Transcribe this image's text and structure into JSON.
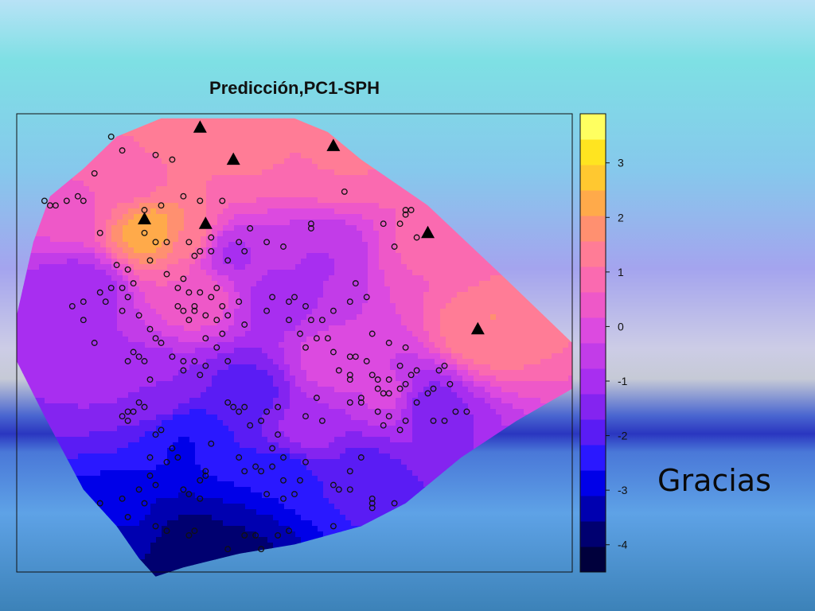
{
  "slide": {
    "closing_text": "Gracias"
  },
  "chart_data": {
    "type": "heatmap",
    "title": "Predicción,PC1-SPH",
    "xlabel": "",
    "ylabel": "",
    "grid": false,
    "legend": "right",
    "colorbar": {
      "ticks": [
        3,
        2,
        1,
        0,
        -1,
        -2,
        -3,
        -4
      ],
      "tick_labels": [
        "3",
        "2",
        "1",
        "0",
        "-1",
        "-2",
        "-3",
        "-4"
      ],
      "range": [
        -4.5,
        3.9
      ],
      "colors": [
        "#00003c",
        "#000070",
        "#0000b0",
        "#0000e8",
        "#2a18ff",
        "#5a1cf4",
        "#8424f0",
        "#a82ef0",
        "#c23ce8",
        "#dc4ae0",
        "#ee58c8",
        "#fa6ab0",
        "#ff7c96",
        "#ff9070",
        "#ffaa4a",
        "#ffc830",
        "#ffe420",
        "#ffff60"
      ]
    },
    "peaks": [
      {
        "x": 0.24,
        "y": 0.74,
        "v": 3.6
      },
      {
        "x": 0.31,
        "y": 0.73,
        "v": 2.2
      },
      {
        "x": 0.84,
        "y": 0.52,
        "v": 2.4
      },
      {
        "x": 0.3,
        "y": 0.95,
        "v": 1.6
      },
      {
        "x": 0.4,
        "y": 0.9,
        "v": 1.4
      },
      {
        "x": 0.58,
        "y": 0.88,
        "v": 1.3
      },
      {
        "x": 0.74,
        "y": 0.7,
        "v": 1.0
      },
      {
        "x": 0.32,
        "y": 0.6,
        "v": 1.2
      },
      {
        "x": 0.2,
        "y": 0.86,
        "v": 1.1
      },
      {
        "x": 0.68,
        "y": 0.38,
        "v": 0.6
      },
      {
        "x": 0.56,
        "y": 0.45,
        "v": 0.4
      },
      {
        "x": 0.1,
        "y": 0.8,
        "v": 0.8
      },
      {
        "x": 0.38,
        "y": 0.7,
        "v": -1.2
      },
      {
        "x": 0.55,
        "y": 0.7,
        "v": -1.0
      },
      {
        "x": 0.12,
        "y": 0.62,
        "v": -1.2
      },
      {
        "x": 0.73,
        "y": 0.37,
        "v": -1.8
      },
      {
        "x": 0.47,
        "y": 0.6,
        "v": -1.0
      },
      {
        "x": 0.42,
        "y": 0.4,
        "v": -2.0
      },
      {
        "x": 0.48,
        "y": 0.22,
        "v": -2.6
      },
      {
        "x": 0.3,
        "y": 0.3,
        "v": -2.8
      },
      {
        "x": 0.2,
        "y": 0.1,
        "v": -3.0
      },
      {
        "x": 0.3,
        "y": 0.05,
        "v": -4.2
      },
      {
        "x": 0.4,
        "y": 0.05,
        "v": -3.8
      },
      {
        "x": 0.62,
        "y": 0.22,
        "v": -1.8
      },
      {
        "x": 0.25,
        "y": 0.38,
        "v": -1.0
      },
      {
        "x": 0.05,
        "y": 0.55,
        "v": -0.8
      },
      {
        "x": 0.52,
        "y": 0.3,
        "v": -0.6
      },
      {
        "x": 0.18,
        "y": 0.45,
        "v": -0.5
      }
    ],
    "points": [
      [
        0.17,
        0.95
      ],
      [
        0.19,
        0.92
      ],
      [
        0.25,
        0.91
      ],
      [
        0.28,
        0.9
      ],
      [
        0.14,
        0.87
      ],
      [
        0.12,
        0.81
      ],
      [
        0.11,
        0.82
      ],
      [
        0.09,
        0.81
      ],
      [
        0.07,
        0.8
      ],
      [
        0.05,
        0.81
      ],
      [
        0.06,
        0.8
      ],
      [
        0.23,
        0.79
      ],
      [
        0.26,
        0.8
      ],
      [
        0.3,
        0.82
      ],
      [
        0.33,
        0.81
      ],
      [
        0.37,
        0.81
      ],
      [
        0.59,
        0.83
      ],
      [
        0.53,
        0.76
      ],
      [
        0.53,
        0.75
      ],
      [
        0.7,
        0.79
      ],
      [
        0.7,
        0.78
      ],
      [
        0.71,
        0.79
      ],
      [
        0.66,
        0.76
      ],
      [
        0.69,
        0.76
      ],
      [
        0.72,
        0.73
      ],
      [
        0.68,
        0.71
      ],
      [
        0.45,
        0.72
      ],
      [
        0.48,
        0.71
      ],
      [
        0.42,
        0.75
      ],
      [
        0.4,
        0.72
      ],
      [
        0.38,
        0.68
      ],
      [
        0.41,
        0.7
      ],
      [
        0.35,
        0.7
      ],
      [
        0.32,
        0.69
      ],
      [
        0.33,
        0.7
      ],
      [
        0.23,
        0.74
      ],
      [
        0.25,
        0.72
      ],
      [
        0.27,
        0.72
      ],
      [
        0.31,
        0.72
      ],
      [
        0.35,
        0.73
      ],
      [
        0.15,
        0.74
      ],
      [
        0.2,
        0.66
      ],
      [
        0.18,
        0.67
      ],
      [
        0.24,
        0.68
      ],
      [
        0.27,
        0.65
      ],
      [
        0.3,
        0.64
      ],
      [
        0.29,
        0.62
      ],
      [
        0.31,
        0.61
      ],
      [
        0.33,
        0.61
      ],
      [
        0.36,
        0.62
      ],
      [
        0.35,
        0.6
      ],
      [
        0.32,
        0.58
      ],
      [
        0.32,
        0.57
      ],
      [
        0.3,
        0.57
      ],
      [
        0.29,
        0.58
      ],
      [
        0.31,
        0.55
      ],
      [
        0.34,
        0.56
      ],
      [
        0.38,
        0.56
      ],
      [
        0.41,
        0.54
      ],
      [
        0.46,
        0.6
      ],
      [
        0.49,
        0.59
      ],
      [
        0.5,
        0.6
      ],
      [
        0.52,
        0.58
      ],
      [
        0.53,
        0.55
      ],
      [
        0.55,
        0.55
      ],
      [
        0.57,
        0.57
      ],
      [
        0.6,
        0.59
      ],
      [
        0.61,
        0.63
      ],
      [
        0.63,
        0.6
      ],
      [
        0.64,
        0.52
      ],
      [
        0.67,
        0.5
      ],
      [
        0.7,
        0.49
      ],
      [
        0.69,
        0.45
      ],
      [
        0.67,
        0.42
      ],
      [
        0.61,
        0.47
      ],
      [
        0.57,
        0.48
      ],
      [
        0.56,
        0.51
      ],
      [
        0.6,
        0.47
      ],
      [
        0.63,
        0.46
      ],
      [
        0.65,
        0.42
      ],
      [
        0.7,
        0.41
      ],
      [
        0.71,
        0.43
      ],
      [
        0.74,
        0.39
      ],
      [
        0.75,
        0.4
      ],
      [
        0.78,
        0.41
      ],
      [
        0.77,
        0.45
      ],
      [
        0.76,
        0.44
      ],
      [
        0.72,
        0.44
      ],
      [
        0.79,
        0.35
      ],
      [
        0.81,
        0.35
      ],
      [
        0.77,
        0.33
      ],
      [
        0.75,
        0.33
      ],
      [
        0.72,
        0.37
      ],
      [
        0.69,
        0.4
      ],
      [
        0.66,
        0.39
      ],
      [
        0.65,
        0.4
      ],
      [
        0.64,
        0.43
      ],
      [
        0.62,
        0.38
      ],
      [
        0.6,
        0.37
      ],
      [
        0.62,
        0.37
      ],
      [
        0.67,
        0.39
      ],
      [
        0.55,
        0.33
      ],
      [
        0.54,
        0.38
      ],
      [
        0.52,
        0.34
      ],
      [
        0.47,
        0.36
      ],
      [
        0.45,
        0.35
      ],
      [
        0.44,
        0.33
      ],
      [
        0.41,
        0.36
      ],
      [
        0.38,
        0.37
      ],
      [
        0.39,
        0.36
      ],
      [
        0.4,
        0.35
      ],
      [
        0.42,
        0.32
      ],
      [
        0.46,
        0.27
      ],
      [
        0.47,
        0.3
      ],
      [
        0.48,
        0.25
      ],
      [
        0.44,
        0.22
      ],
      [
        0.45,
        0.17
      ],
      [
        0.48,
        0.2
      ],
      [
        0.51,
        0.2
      ],
      [
        0.52,
        0.24
      ],
      [
        0.46,
        0.23
      ],
      [
        0.43,
        0.23
      ],
      [
        0.41,
        0.22
      ],
      [
        0.4,
        0.25
      ],
      [
        0.35,
        0.28
      ],
      [
        0.34,
        0.22
      ],
      [
        0.34,
        0.21
      ],
      [
        0.33,
        0.2
      ],
      [
        0.29,
        0.25
      ],
      [
        0.28,
        0.27
      ],
      [
        0.27,
        0.24
      ],
      [
        0.24,
        0.25
      ],
      [
        0.21,
        0.35
      ],
      [
        0.2,
        0.33
      ],
      [
        0.19,
        0.34
      ],
      [
        0.2,
        0.35
      ],
      [
        0.23,
        0.36
      ],
      [
        0.22,
        0.37
      ],
      [
        0.24,
        0.42
      ],
      [
        0.23,
        0.46
      ],
      [
        0.22,
        0.47
      ],
      [
        0.21,
        0.48
      ],
      [
        0.2,
        0.46
      ],
      [
        0.14,
        0.5
      ],
      [
        0.12,
        0.55
      ],
      [
        0.1,
        0.58
      ],
      [
        0.12,
        0.59
      ],
      [
        0.16,
        0.59
      ],
      [
        0.15,
        0.61
      ],
      [
        0.17,
        0.62
      ],
      [
        0.19,
        0.62
      ],
      [
        0.21,
        0.63
      ],
      [
        0.2,
        0.6
      ],
      [
        0.19,
        0.57
      ],
      [
        0.22,
        0.56
      ],
      [
        0.24,
        0.53
      ],
      [
        0.25,
        0.51
      ],
      [
        0.26,
        0.5
      ],
      [
        0.28,
        0.47
      ],
      [
        0.3,
        0.46
      ],
      [
        0.32,
        0.46
      ],
      [
        0.3,
        0.44
      ],
      [
        0.33,
        0.43
      ],
      [
        0.34,
        0.45
      ],
      [
        0.36,
        0.49
      ],
      [
        0.38,
        0.46
      ],
      [
        0.34,
        0.51
      ],
      [
        0.36,
        0.55
      ],
      [
        0.37,
        0.52
      ],
      [
        0.37,
        0.58
      ],
      [
        0.4,
        0.59
      ],
      [
        0.45,
        0.57
      ],
      [
        0.49,
        0.55
      ],
      [
        0.51,
        0.52
      ],
      [
        0.54,
        0.51
      ],
      [
        0.52,
        0.49
      ],
      [
        0.58,
        0.44
      ],
      [
        0.6,
        0.42
      ],
      [
        0.6,
        0.43
      ],
      [
        0.66,
        0.32
      ],
      [
        0.65,
        0.35
      ],
      [
        0.67,
        0.34
      ],
      [
        0.7,
        0.33
      ],
      [
        0.69,
        0.31
      ],
      [
        0.25,
        0.3
      ],
      [
        0.26,
        0.31
      ],
      [
        0.3,
        0.18
      ],
      [
        0.33,
        0.16
      ],
      [
        0.31,
        0.17
      ],
      [
        0.25,
        0.19
      ],
      [
        0.24,
        0.21
      ],
      [
        0.23,
        0.15
      ],
      [
        0.22,
        0.18
      ],
      [
        0.2,
        0.12
      ],
      [
        0.15,
        0.15
      ],
      [
        0.25,
        0.1
      ],
      [
        0.31,
        0.08
      ],
      [
        0.32,
        0.09
      ],
      [
        0.41,
        0.08
      ],
      [
        0.43,
        0.08
      ],
      [
        0.48,
        0.16
      ],
      [
        0.5,
        0.17
      ],
      [
        0.57,
        0.19
      ],
      [
        0.58,
        0.18
      ],
      [
        0.6,
        0.18
      ],
      [
        0.6,
        0.22
      ],
      [
        0.62,
        0.25
      ],
      [
        0.64,
        0.16
      ],
      [
        0.64,
        0.15
      ],
      [
        0.68,
        0.15
      ],
      [
        0.64,
        0.14
      ],
      [
        0.57,
        0.1
      ],
      [
        0.49,
        0.09
      ],
      [
        0.47,
        0.08
      ],
      [
        0.44,
        0.05
      ],
      [
        0.38,
        0.05
      ],
      [
        0.27,
        0.09
      ],
      [
        0.19,
        0.16
      ]
    ],
    "triangles": [
      [
        0.33,
        0.97
      ],
      [
        0.39,
        0.9
      ],
      [
        0.57,
        0.93
      ],
      [
        0.23,
        0.77
      ],
      [
        0.34,
        0.76
      ],
      [
        0.74,
        0.74
      ],
      [
        0.83,
        0.53
      ]
    ]
  }
}
